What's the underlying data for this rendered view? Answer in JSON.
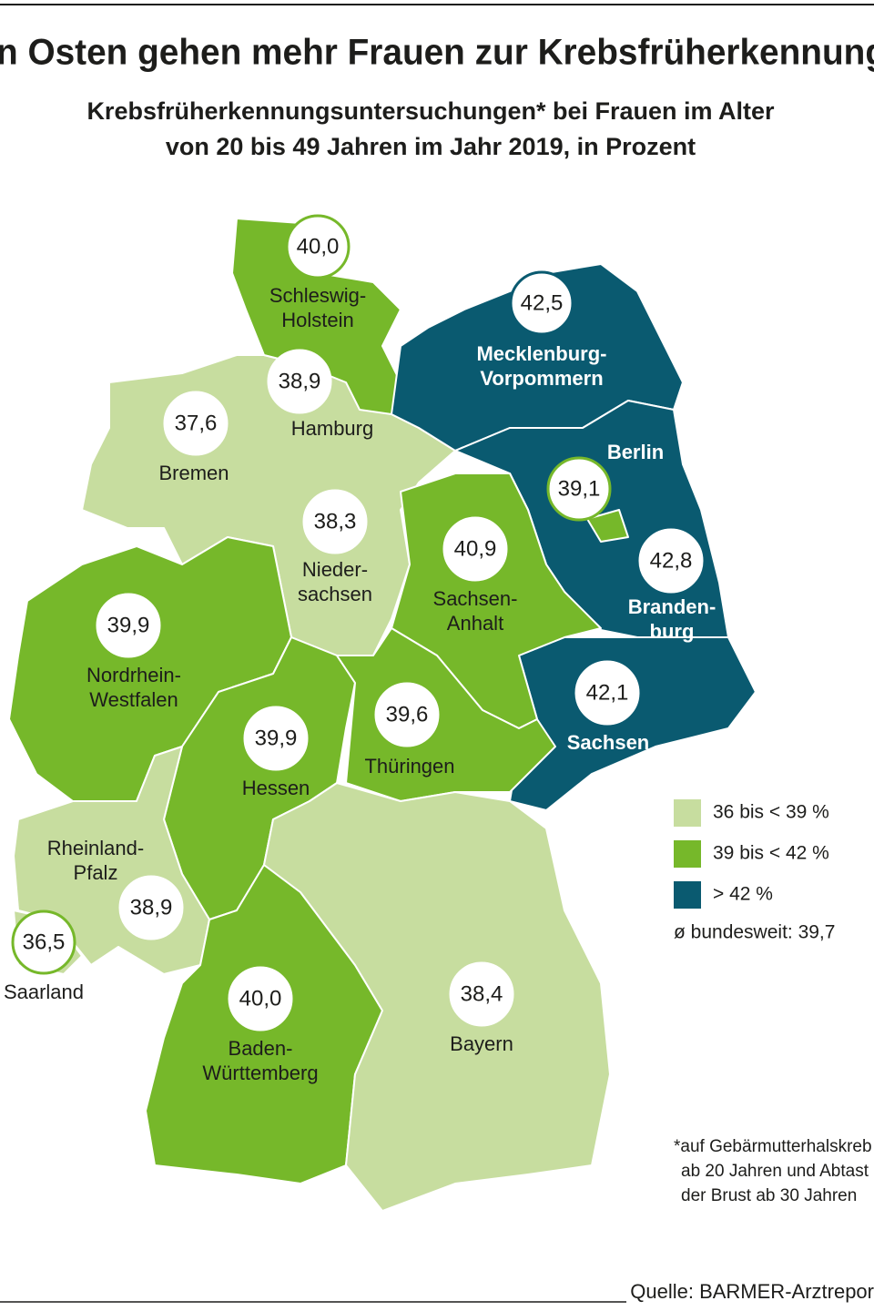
{
  "title": "n Osten gehen mehr Frauen zur Krebsfrüherkennung",
  "subtitle": [
    "Krebsfrüherkennungsuntersuchungen* bei Frauen im Alter",
    "von 20 bis 49 Jahren im Jahr 2019, in Prozent"
  ],
  "regions": [
    {
      "name": [
        "Schleswig-",
        "Holstein"
      ],
      "value": "40,0"
    },
    {
      "name": [
        "Hamburg"
      ],
      "value": "38,9"
    },
    {
      "name": [
        "Bremen"
      ],
      "value": "37,6"
    },
    {
      "name": [
        "Nieder-",
        "sachsen"
      ],
      "value": "38,3"
    },
    {
      "name": [
        "Mecklenburg-",
        "Vorpommern"
      ],
      "value": "42,5"
    },
    {
      "name": [
        "Berlin"
      ],
      "value": "39,1"
    },
    {
      "name": [
        "Branden-",
        "burg"
      ],
      "value": "42,8"
    },
    {
      "name": [
        "Sachsen-",
        "Anhalt"
      ],
      "value": "40,9"
    },
    {
      "name": [
        "Sachsen"
      ],
      "value": "42,1"
    },
    {
      "name": [
        "Nordrhein-",
        "Westfalen"
      ],
      "value": "39,9"
    },
    {
      "name": [
        "Hessen"
      ],
      "value": "39,9"
    },
    {
      "name": [
        "Thüringen"
      ],
      "value": "39,6"
    },
    {
      "name": [
        "Rheinland-",
        "Pfalz"
      ],
      "value": "38,9"
    },
    {
      "name": [
        "Saarland"
      ],
      "value": "36,5"
    },
    {
      "name": [
        "Baden-",
        "Württemberg"
      ],
      "value": "40,0"
    },
    {
      "name": [
        "Bayern"
      ],
      "value": "38,4"
    }
  ],
  "legend": [
    {
      "label": "36 bis < 39 %",
      "color": "#c7dd9f"
    },
    {
      "label": "39 bis < 42 %",
      "color": "#76b82a"
    },
    {
      "label": "> 42 %",
      "color": "#0a5a70"
    }
  ],
  "average": "ø bundesweit: 39,7",
  "footnote": [
    "*auf Gebärmutterhalskreb",
    "ab 20 Jahren und Abtast",
    "der Brust ab 30 Jahren"
  ],
  "source": "Quelle: BARMER-Arztrepor"
}
